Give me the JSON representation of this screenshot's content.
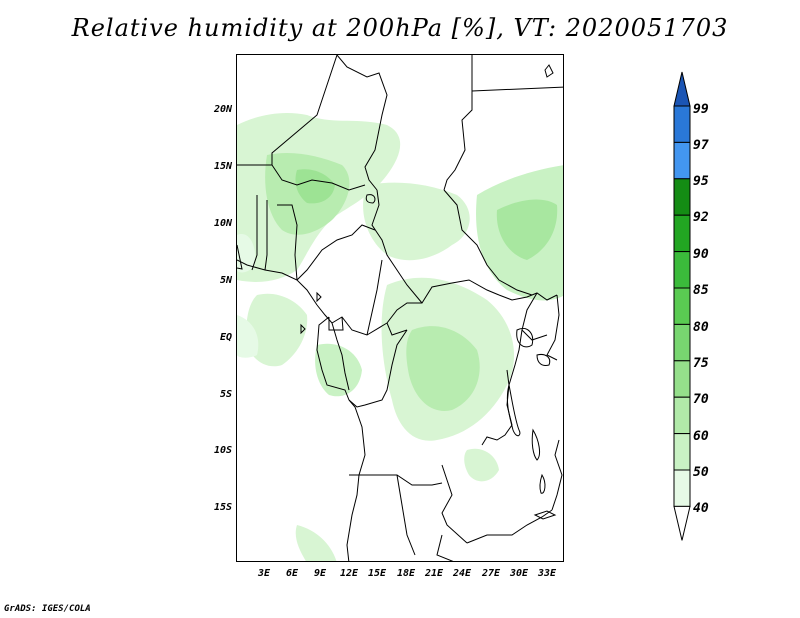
{
  "title": "Relative humidity at 200hPa [%], VT: 2020051703",
  "credit": "GrADS: IGES/COLA",
  "lat_labels": [
    "20N",
    "15N",
    "10N",
    "5N",
    "EQ",
    "5S",
    "10S",
    "15S"
  ],
  "lon_labels": [
    "3E",
    "6E",
    "9E",
    "12E",
    "15E",
    "18E",
    "21E",
    "24E",
    "27E",
    "30E",
    "33E"
  ],
  "colorbar": {
    "labels": [
      "40",
      "50",
      "60",
      "70",
      "75",
      "80",
      "85",
      "90",
      "92",
      "95",
      "97",
      "99"
    ],
    "colors": [
      "#ffffff",
      "#e6fae6",
      "#c9f2c4",
      "#b1eaa9",
      "#95df8b",
      "#78d670",
      "#5acb52",
      "#3bbb3b",
      "#22a622",
      "#148c14",
      "#4396f0",
      "#2a78d8",
      "#1b55b4"
    ]
  }
}
